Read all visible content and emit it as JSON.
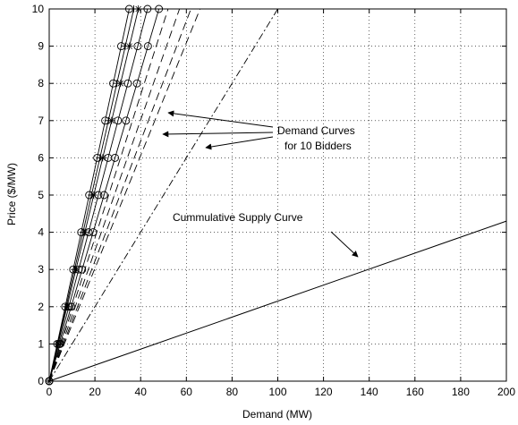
{
  "chart_data": {
    "type": "line",
    "xlabel": "Demand (MW)",
    "ylabel": "Price ($/MW)",
    "xlim": [
      0,
      200
    ],
    "ylim": [
      0,
      10
    ],
    "xticks": [
      0,
      20,
      40,
      60,
      80,
      100,
      120,
      140,
      160,
      180,
      200
    ],
    "yticks": [
      0,
      1,
      2,
      3,
      4,
      5,
      6,
      7,
      8,
      9,
      10
    ],
    "grid": "dotted",
    "series": [
      {
        "slope_mw_per_price": 3.5,
        "style": "solid",
        "marker": "circle"
      },
      {
        "slope_mw_per_price": 3.7,
        "style": "solid",
        "marker": "plus"
      },
      {
        "slope_mw_per_price": 3.9,
        "style": "solid",
        "marker": "star"
      },
      {
        "slope_mw_per_price": 4.3,
        "style": "solid",
        "marker": "circle"
      },
      {
        "slope_mw_per_price": 4.8,
        "style": "solid",
        "marker": "circle"
      },
      {
        "slope_mw_per_price": 5.2,
        "style": "dashed",
        "marker": "none"
      },
      {
        "slope_mw_per_price": 5.7,
        "style": "dashed",
        "marker": "none"
      },
      {
        "slope_mw_per_price": 6.2,
        "style": "dashed",
        "marker": "none"
      },
      {
        "slope_mw_per_price": 6.6,
        "style": "dashed",
        "marker": "none"
      },
      {
        "slope_mw_per_price": 10.0,
        "style": "dashdot",
        "marker": "none"
      }
    ],
    "supply": {
      "x": [
        0,
        200
      ],
      "y": [
        0,
        4.3
      ],
      "style": "solid"
    },
    "annotations": {
      "demand_label_line1": "Demand Curves",
      "demand_label_line2": "for 10 Bidders",
      "supply_label": "Cummulative Supply Curve"
    }
  }
}
